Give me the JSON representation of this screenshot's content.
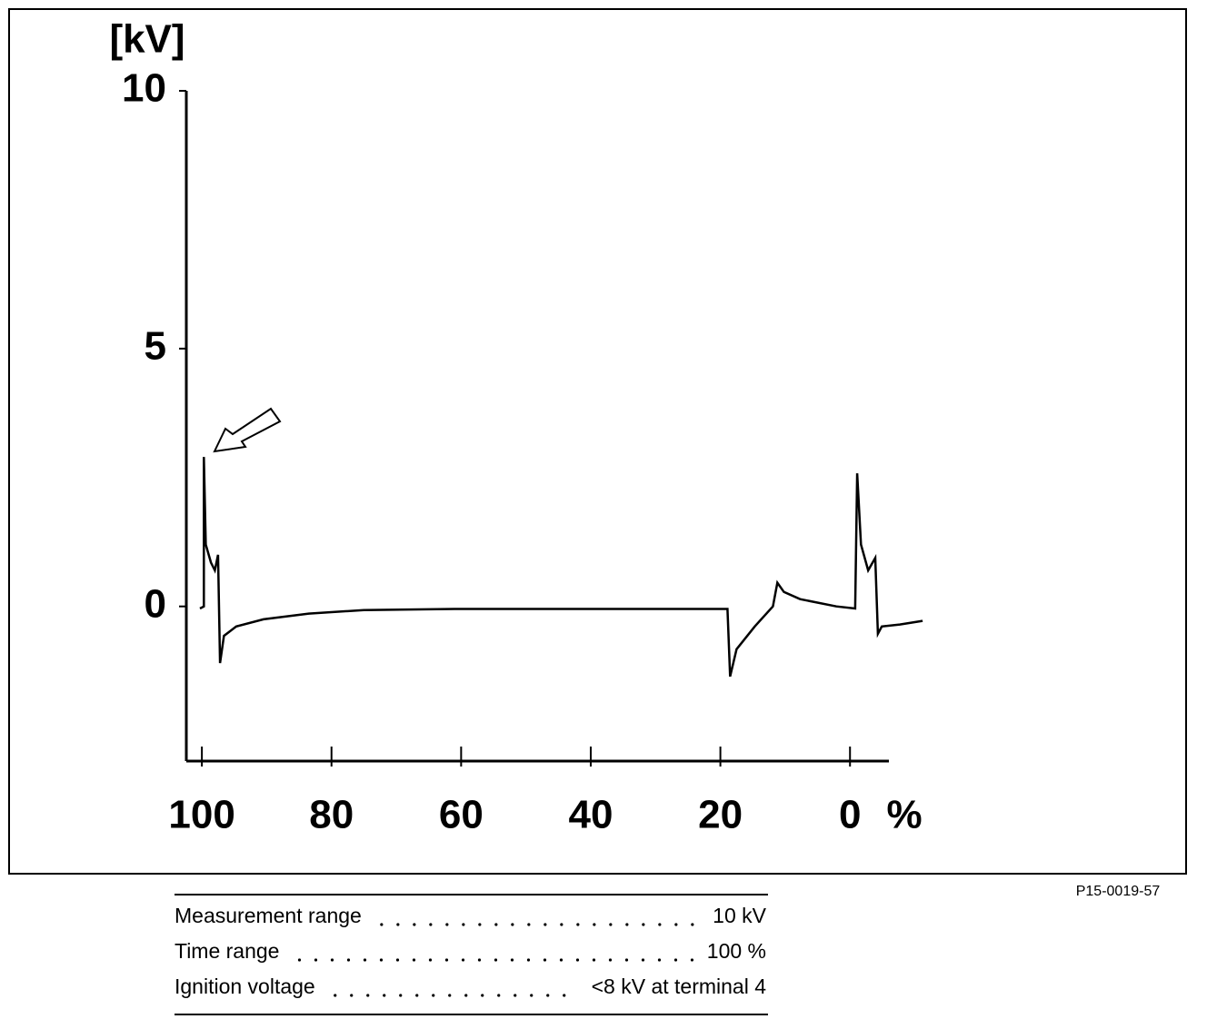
{
  "chart_data": {
    "type": "line",
    "y_label": "[kV]",
    "x_label": "%",
    "x": [
      100.3,
      99.7,
      99.7,
      99.4,
      98.6,
      98.0,
      97.5,
      97.2,
      96.6,
      94.7,
      90.5,
      83.5,
      75,
      61,
      18.9,
      18.5,
      17.5,
      14.7,
      11.9,
      11.2,
      10.2,
      7.7,
      2.1,
      -0.8,
      -1.1,
      -1.7,
      -2.8,
      -3.9,
      -4.3,
      -4.9,
      -7.7,
      -11.2
    ],
    "y": [
      -0.04,
      0,
      2.9,
      1.2,
      0.85,
      0.7,
      1.0,
      -1.1,
      -0.57,
      -0.39,
      -0.25,
      -0.14,
      -0.07,
      -0.05,
      -0.05,
      -1.36,
      -0.83,
      -0.39,
      0,
      0.46,
      0.28,
      0.14,
      0,
      -0.04,
      2.58,
      1.2,
      0.7,
      0.94,
      -0.53,
      -0.39,
      -0.35,
      -0.28
    ],
    "color": "#000000",
    "xlim": [
      102.4,
      -6
    ],
    "ylim": [
      -3,
      10
    ],
    "xticks": [
      100,
      80,
      60,
      40,
      20,
      0
    ],
    "yticks": [
      0,
      5,
      10
    ]
  },
  "specs": {
    "rows": [
      {
        "label": "Measurement range",
        "value": "10 kV"
      },
      {
        "label": "Time range",
        "value": "100 %"
      },
      {
        "label": "Ignition voltage",
        "value": "<8 kV at terminal 4"
      }
    ]
  },
  "figure_code": "P15-0019-57"
}
